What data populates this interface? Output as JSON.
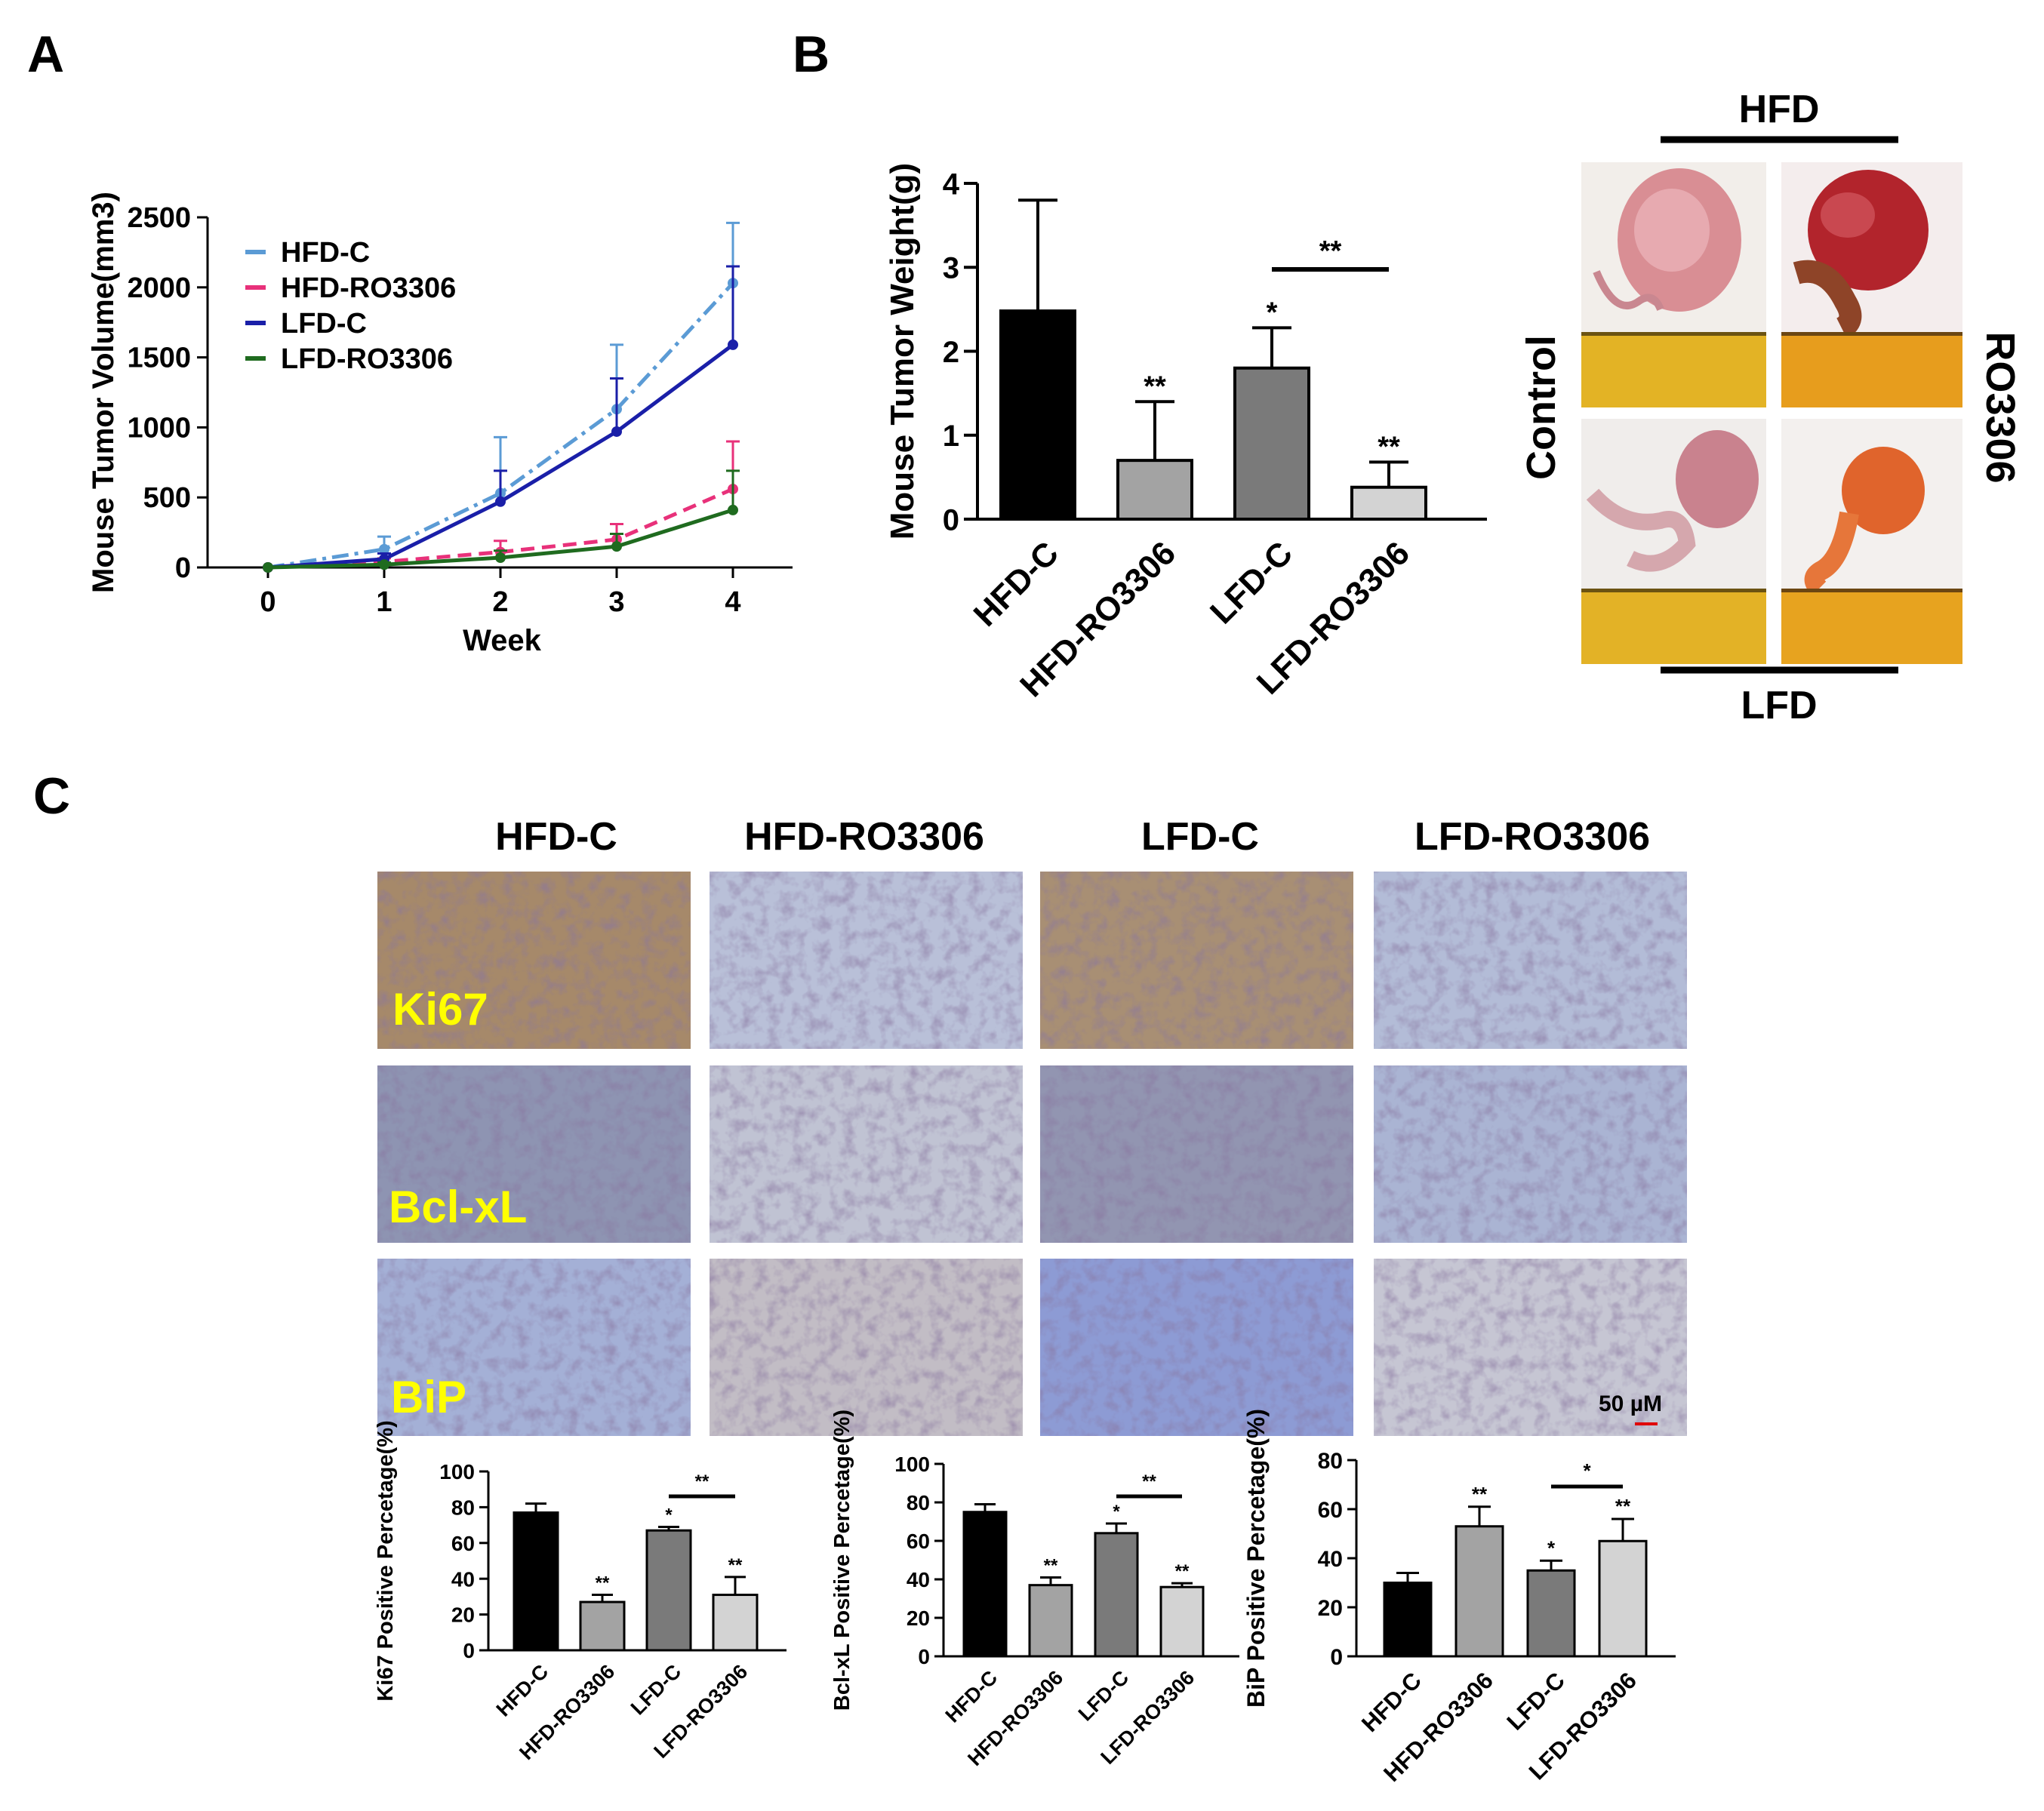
{
  "panel_letters": [
    "A",
    "B",
    "C"
  ],
  "panelB_photos": {
    "top_label": "HFD",
    "bottom_label": "LFD",
    "left_label": "Control",
    "right_label": "RO3306"
  },
  "panelC_images": {
    "columns": [
      "HFD-C",
      "HFD-RO3306",
      "LFD-C",
      "LFD-RO3306"
    ],
    "rows": [
      "Ki67",
      "Bcl-xL",
      "BiP"
    ],
    "scale_bar": "50 µM",
    "row_label_color": "#ffff00",
    "tints": [
      [
        "#a6896a",
        "#b9c0d8",
        "#a88f74",
        "#b3bcd7"
      ],
      [
        "#8e94b2",
        "#c0c3d3",
        "#9295b1",
        "#aab4d3"
      ],
      [
        "#a4b0d6",
        "#c2bdc5",
        "#8d9bd4",
        "#c6c6d3"
      ]
    ]
  },
  "chart_data": [
    {
      "type": "line",
      "panel": "A",
      "xlabel": "Week",
      "ylabel": "Mouse Tumor Volume(mm3)",
      "x": [
        0,
        1,
        2,
        3,
        4
      ],
      "xticks": [
        "0",
        "1",
        "2",
        "3",
        "4"
      ],
      "ylim": [
        0,
        2500
      ],
      "yticks": [
        "0",
        "500",
        "1000",
        "1500",
        "2000",
        "2500"
      ],
      "legend_position": "top-left",
      "series": [
        {
          "name": "HFD-C",
          "values": [
            0,
            130,
            530,
            1130,
            2030
          ],
          "errors": [
            0,
            90,
            400,
            460,
            430
          ],
          "color": "#5b9bd5",
          "dash": "dashdot",
          "marker": "circle"
        },
        {
          "name": "HFD-RO3306",
          "values": [
            0,
            40,
            110,
            200,
            560
          ],
          "errors": [
            0,
            25,
            80,
            110,
            340
          ],
          "color": "#e8317a",
          "dash": "dash",
          "marker": "square"
        },
        {
          "name": "LFD-C",
          "values": [
            0,
            60,
            470,
            970,
            1590
          ],
          "errors": [
            0,
            40,
            220,
            380,
            560
          ],
          "color": "#1a1fa8",
          "dash": "solid",
          "marker": "star"
        },
        {
          "name": "LFD-RO3306",
          "values": [
            0,
            20,
            70,
            150,
            410
          ],
          "errors": [
            0,
            15,
            50,
            90,
            280
          ],
          "color": "#1f6b1f",
          "dash": "solid",
          "marker": "plus"
        }
      ]
    },
    {
      "type": "bar",
      "panel": "B",
      "ylabel": "Mouse Tumor Weight(g)",
      "categories": [
        "HFD-C",
        "HFD-RO3306",
        "LFD-C",
        "LFD-RO3306"
      ],
      "values": [
        2.48,
        0.7,
        1.8,
        0.38
      ],
      "errors": [
        1.32,
        0.7,
        0.48,
        0.3
      ],
      "colors": [
        "#000000",
        "#a3a3a3",
        "#7a7a7a",
        "#d3d3d3"
      ],
      "significance": [
        "",
        "**",
        "*",
        "**"
      ],
      "bracket": {
        "from": 2,
        "to": 3,
        "label": "**"
      },
      "ylim": [
        0,
        4
      ],
      "yticks": [
        "0",
        "1",
        "2",
        "3",
        "4"
      ]
    },
    {
      "type": "bar",
      "panel": "C-Ki67",
      "ylabel": "Ki67 Positive Percetage(%)",
      "categories": [
        "HFD-C",
        "HFD-RO3306",
        "LFD-C",
        "LFD-RO3306"
      ],
      "values": [
        77,
        27,
        67,
        31
      ],
      "errors": [
        5,
        4,
        2,
        10
      ],
      "colors": [
        "#000000",
        "#a3a3a3",
        "#7a7a7a",
        "#d3d3d3"
      ],
      "significance": [
        "",
        "**",
        "*",
        "**"
      ],
      "bracket": {
        "from": 2,
        "to": 3,
        "label": "**"
      },
      "ylim": [
        0,
        100
      ],
      "yticks": [
        "0",
        "20",
        "40",
        "60",
        "80",
        "100"
      ]
    },
    {
      "type": "bar",
      "panel": "C-Bcl-xL",
      "ylabel": "Bcl-xL Positive Percetage(%)",
      "categories": [
        "HFD-C",
        "HFD-RO3306",
        "LFD-C",
        "LFD-RO3306"
      ],
      "values": [
        75,
        37,
        64,
        36
      ],
      "errors": [
        4,
        4,
        5,
        2
      ],
      "colors": [
        "#000000",
        "#a3a3a3",
        "#7a7a7a",
        "#d3d3d3"
      ],
      "significance": [
        "",
        "**",
        "*",
        "**"
      ],
      "bracket": {
        "from": 2,
        "to": 3,
        "label": "**"
      },
      "ylim": [
        0,
        100
      ],
      "yticks": [
        "0",
        "20",
        "40",
        "60",
        "80",
        "100"
      ]
    },
    {
      "type": "bar",
      "panel": "C-BiP",
      "ylabel": "BiP Positive Percetage(%)",
      "categories": [
        "HFD-C",
        "HFD-RO3306",
        "LFD-C",
        "LFD-RO3306"
      ],
      "values": [
        30,
        53,
        35,
        47
      ],
      "errors": [
        4,
        8,
        4,
        9
      ],
      "colors": [
        "#000000",
        "#a3a3a3",
        "#7a7a7a",
        "#d3d3d3"
      ],
      "significance": [
        "",
        "**",
        "*",
        "**"
      ],
      "bracket": {
        "from": 2,
        "to": 3,
        "label": "*"
      },
      "ylim": [
        0,
        80
      ],
      "yticks": [
        "0",
        "20",
        "40",
        "60",
        "80"
      ]
    }
  ]
}
